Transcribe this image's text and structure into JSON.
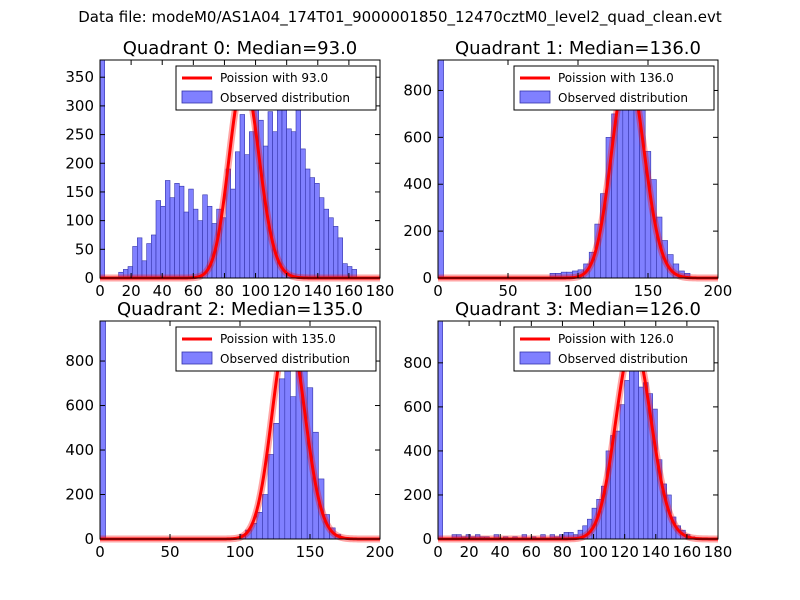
{
  "figure": {
    "title": "Data file: modeM0/AS1A04_174T01_9000001850_12470cztM0_level2_quad_clean.evt",
    "colors": {
      "hist_fill": "#8080ff",
      "hist_edge": "#3333aa",
      "poisson_line": "#ff0000",
      "axes": "#000000"
    }
  },
  "chart_data": [
    {
      "type": "bar",
      "title": "Quadrant 0: Median=93.0",
      "xlim": [
        0,
        180
      ],
      "ylim": [
        0,
        380
      ],
      "xticks": [
        0,
        20,
        40,
        60,
        80,
        100,
        120,
        140,
        160,
        180
      ],
      "yticks": [
        0,
        50,
        100,
        150,
        200,
        250,
        300,
        350
      ],
      "legend": {
        "placement": "top-right",
        "entries": [
          "Poission with 93.0",
          "Observed distribution"
        ]
      },
      "bin_width": 3,
      "histogram": {
        "name": "Observed distribution",
        "bin_starts": [
          0,
          3,
          6,
          9,
          12,
          15,
          18,
          21,
          24,
          27,
          30,
          33,
          36,
          39,
          42,
          45,
          48,
          51,
          54,
          57,
          60,
          63,
          66,
          69,
          72,
          75,
          78,
          81,
          84,
          87,
          90,
          93,
          96,
          99,
          102,
          105,
          108,
          111,
          114,
          117,
          120,
          123,
          126,
          129,
          132,
          135,
          138,
          141,
          144,
          147,
          150,
          153,
          156,
          159,
          162,
          165
        ],
        "counts": [
          380,
          0,
          0,
          0,
          10,
          15,
          20,
          55,
          70,
          30,
          60,
          75,
          135,
          125,
          170,
          140,
          165,
          160,
          115,
          155,
          120,
          100,
          145,
          125,
          95,
          120,
          105,
          190,
          155,
          220,
          285,
          215,
          255,
          310,
          275,
          230,
          290,
          255,
          330,
          305,
          260,
          255,
          340,
          225,
          190,
          175,
          165,
          140,
          120,
          105,
          90,
          70,
          25,
          20,
          15,
          0
        ]
      },
      "poisson": {
        "name": "Poission with 93.0",
        "mean": 93.0
      }
    },
    {
      "type": "bar",
      "title": "Quadrant 1: Median=136.0",
      "xlim": [
        0,
        200
      ],
      "ylim": [
        0,
        930
      ],
      "xticks": [
        0,
        50,
        100,
        150,
        200
      ],
      "yticks": [
        0,
        200,
        400,
        600,
        800
      ],
      "legend": {
        "placement": "top-right",
        "entries": [
          "Poission with 136.0",
          "Observed distribution"
        ]
      },
      "bin_width": 4,
      "histogram": {
        "name": "Observed distribution",
        "bin_starts": [
          0,
          80,
          84,
          88,
          92,
          96,
          100,
          104,
          108,
          112,
          116,
          120,
          124,
          128,
          132,
          136,
          140,
          144,
          148,
          152,
          156,
          160,
          164,
          168,
          172,
          176
        ],
        "counts": [
          930,
          20,
          20,
          25,
          25,
          30,
          35,
          60,
          110,
          230,
          360,
          600,
          700,
          860,
          820,
          870,
          780,
          720,
          540,
          420,
          260,
          160,
          100,
          60,
          30,
          20
        ]
      },
      "poisson": {
        "name": "Poission with 136.0",
        "mean": 136.0
      }
    },
    {
      "type": "bar",
      "title": "Quadrant 2: Median=135.0",
      "xlim": [
        0,
        200
      ],
      "ylim": [
        0,
        980
      ],
      "xticks": [
        0,
        50,
        100,
        150,
        200
      ],
      "yticks": [
        0,
        200,
        400,
        600,
        800
      ],
      "legend": {
        "placement": "top-right",
        "entries": [
          "Poission with 135.0",
          "Observed distribution"
        ]
      },
      "bin_width": 4,
      "histogram": {
        "name": "Observed distribution",
        "bin_starts": [
          0,
          100,
          104,
          108,
          112,
          116,
          120,
          124,
          128,
          132,
          136,
          140,
          144,
          148,
          152,
          156,
          160,
          164,
          168
        ],
        "counts": [
          980,
          20,
          40,
          70,
          120,
          200,
          380,
          520,
          720,
          880,
          640,
          920,
          820,
          680,
          480,
          270,
          110,
          50,
          20
        ]
      },
      "poisson": {
        "name": "Poission with 135.0",
        "mean": 135.0
      }
    },
    {
      "type": "bar",
      "title": "Quadrant 3: Median=126.0",
      "xlim": [
        0,
        180
      ],
      "ylim": [
        0,
        990
      ],
      "xticks": [
        0,
        20,
        40,
        60,
        80,
        100,
        120,
        140,
        160,
        180
      ],
      "yticks": [
        0,
        200,
        400,
        600,
        800
      ],
      "legend": {
        "placement": "top-right",
        "entries": [
          "Poission with 126.0",
          "Observed distribution"
        ]
      },
      "bin_width": 3,
      "histogram": {
        "name": "Observed distribution",
        "bin_starts": [
          0,
          9,
          12,
          15,
          18,
          21,
          24,
          27,
          30,
          36,
          42,
          48,
          54,
          60,
          66,
          72,
          75,
          78,
          81,
          84,
          87,
          90,
          93,
          96,
          99,
          102,
          105,
          108,
          111,
          114,
          117,
          120,
          123,
          126,
          129,
          132,
          135,
          138,
          141,
          144,
          147,
          150,
          153,
          156,
          159,
          162
        ],
        "counts": [
          990,
          20,
          20,
          10,
          20,
          10,
          20,
          10,
          10,
          20,
          10,
          10,
          20,
          10,
          20,
          20,
          10,
          20,
          30,
          30,
          20,
          40,
          60,
          90,
          140,
          180,
          240,
          400,
          470,
          490,
          610,
          720,
          880,
          860,
          690,
          710,
          660,
          590,
          360,
          250,
          200,
          100,
          60,
          40,
          20,
          10
        ]
      },
      "poisson": {
        "name": "Poission with 126.0",
        "mean": 126.0
      }
    }
  ]
}
